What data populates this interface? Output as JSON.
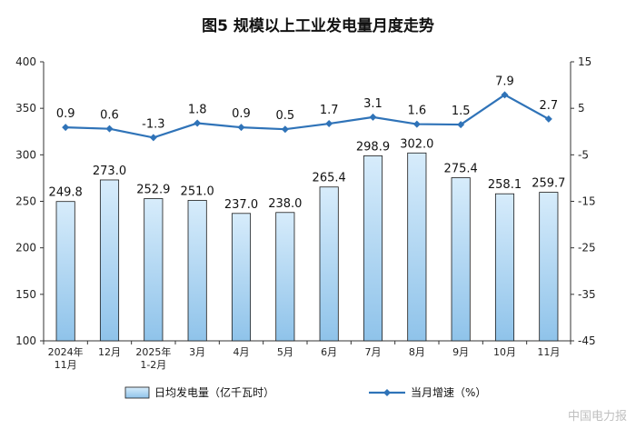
{
  "chart_data": {
    "type": "bar+line",
    "title": "图5 规模以上工业发电量月度走势",
    "categories": [
      [
        "2024年",
        "11月"
      ],
      [
        "12月"
      ],
      [
        "2025年",
        "1-2月"
      ],
      [
        "3月"
      ],
      [
        "4月"
      ],
      [
        "5月"
      ],
      [
        "6月"
      ],
      [
        "7月"
      ],
      [
        "8月"
      ],
      [
        "9月"
      ],
      [
        "10月"
      ],
      [
        "11月"
      ]
    ],
    "series": [
      {
        "name": "日均发电量（亿千瓦时）",
        "type": "bar",
        "axis": "left",
        "values": [
          249.8,
          273.0,
          252.9,
          251.0,
          237.0,
          238.0,
          265.4,
          298.9,
          302.0,
          275.4,
          258.1,
          259.7
        ],
        "labels": [
          "249.8",
          "273.0",
          "252.9",
          "251.0",
          "237.0",
          "238.0",
          "265.4",
          "298.9",
          "302.0",
          "275.4",
          "258.1",
          "259.7"
        ]
      },
      {
        "name": "当月增速（%）",
        "type": "line",
        "axis": "right",
        "values": [
          0.9,
          0.6,
          -1.3,
          1.8,
          0.9,
          0.5,
          1.7,
          3.1,
          1.6,
          1.5,
          7.9,
          2.7
        ],
        "labels": [
          "0.9",
          "0.6",
          "-1.3",
          "1.8",
          "0.9",
          "0.5",
          "1.7",
          "3.1",
          "1.6",
          "1.5",
          "7.9",
          "2.7"
        ]
      }
    ],
    "y_left": {
      "min": 100,
      "max": 400,
      "ticks": [
        100,
        150,
        200,
        250,
        300,
        350,
        400
      ]
    },
    "y_right": {
      "min": -45,
      "max": 15,
      "ticks": [
        -45,
        -35,
        -25,
        -15,
        -5,
        5,
        15
      ]
    },
    "legend_position": "bottom",
    "grid": false,
    "colors": {
      "bar_fill_top": "#d7ecfb",
      "bar_fill_bottom": "#8fc3ea",
      "bar_stroke": "#1a1a1a",
      "line": "#2f73b8"
    }
  },
  "watermark": "中国电力报"
}
